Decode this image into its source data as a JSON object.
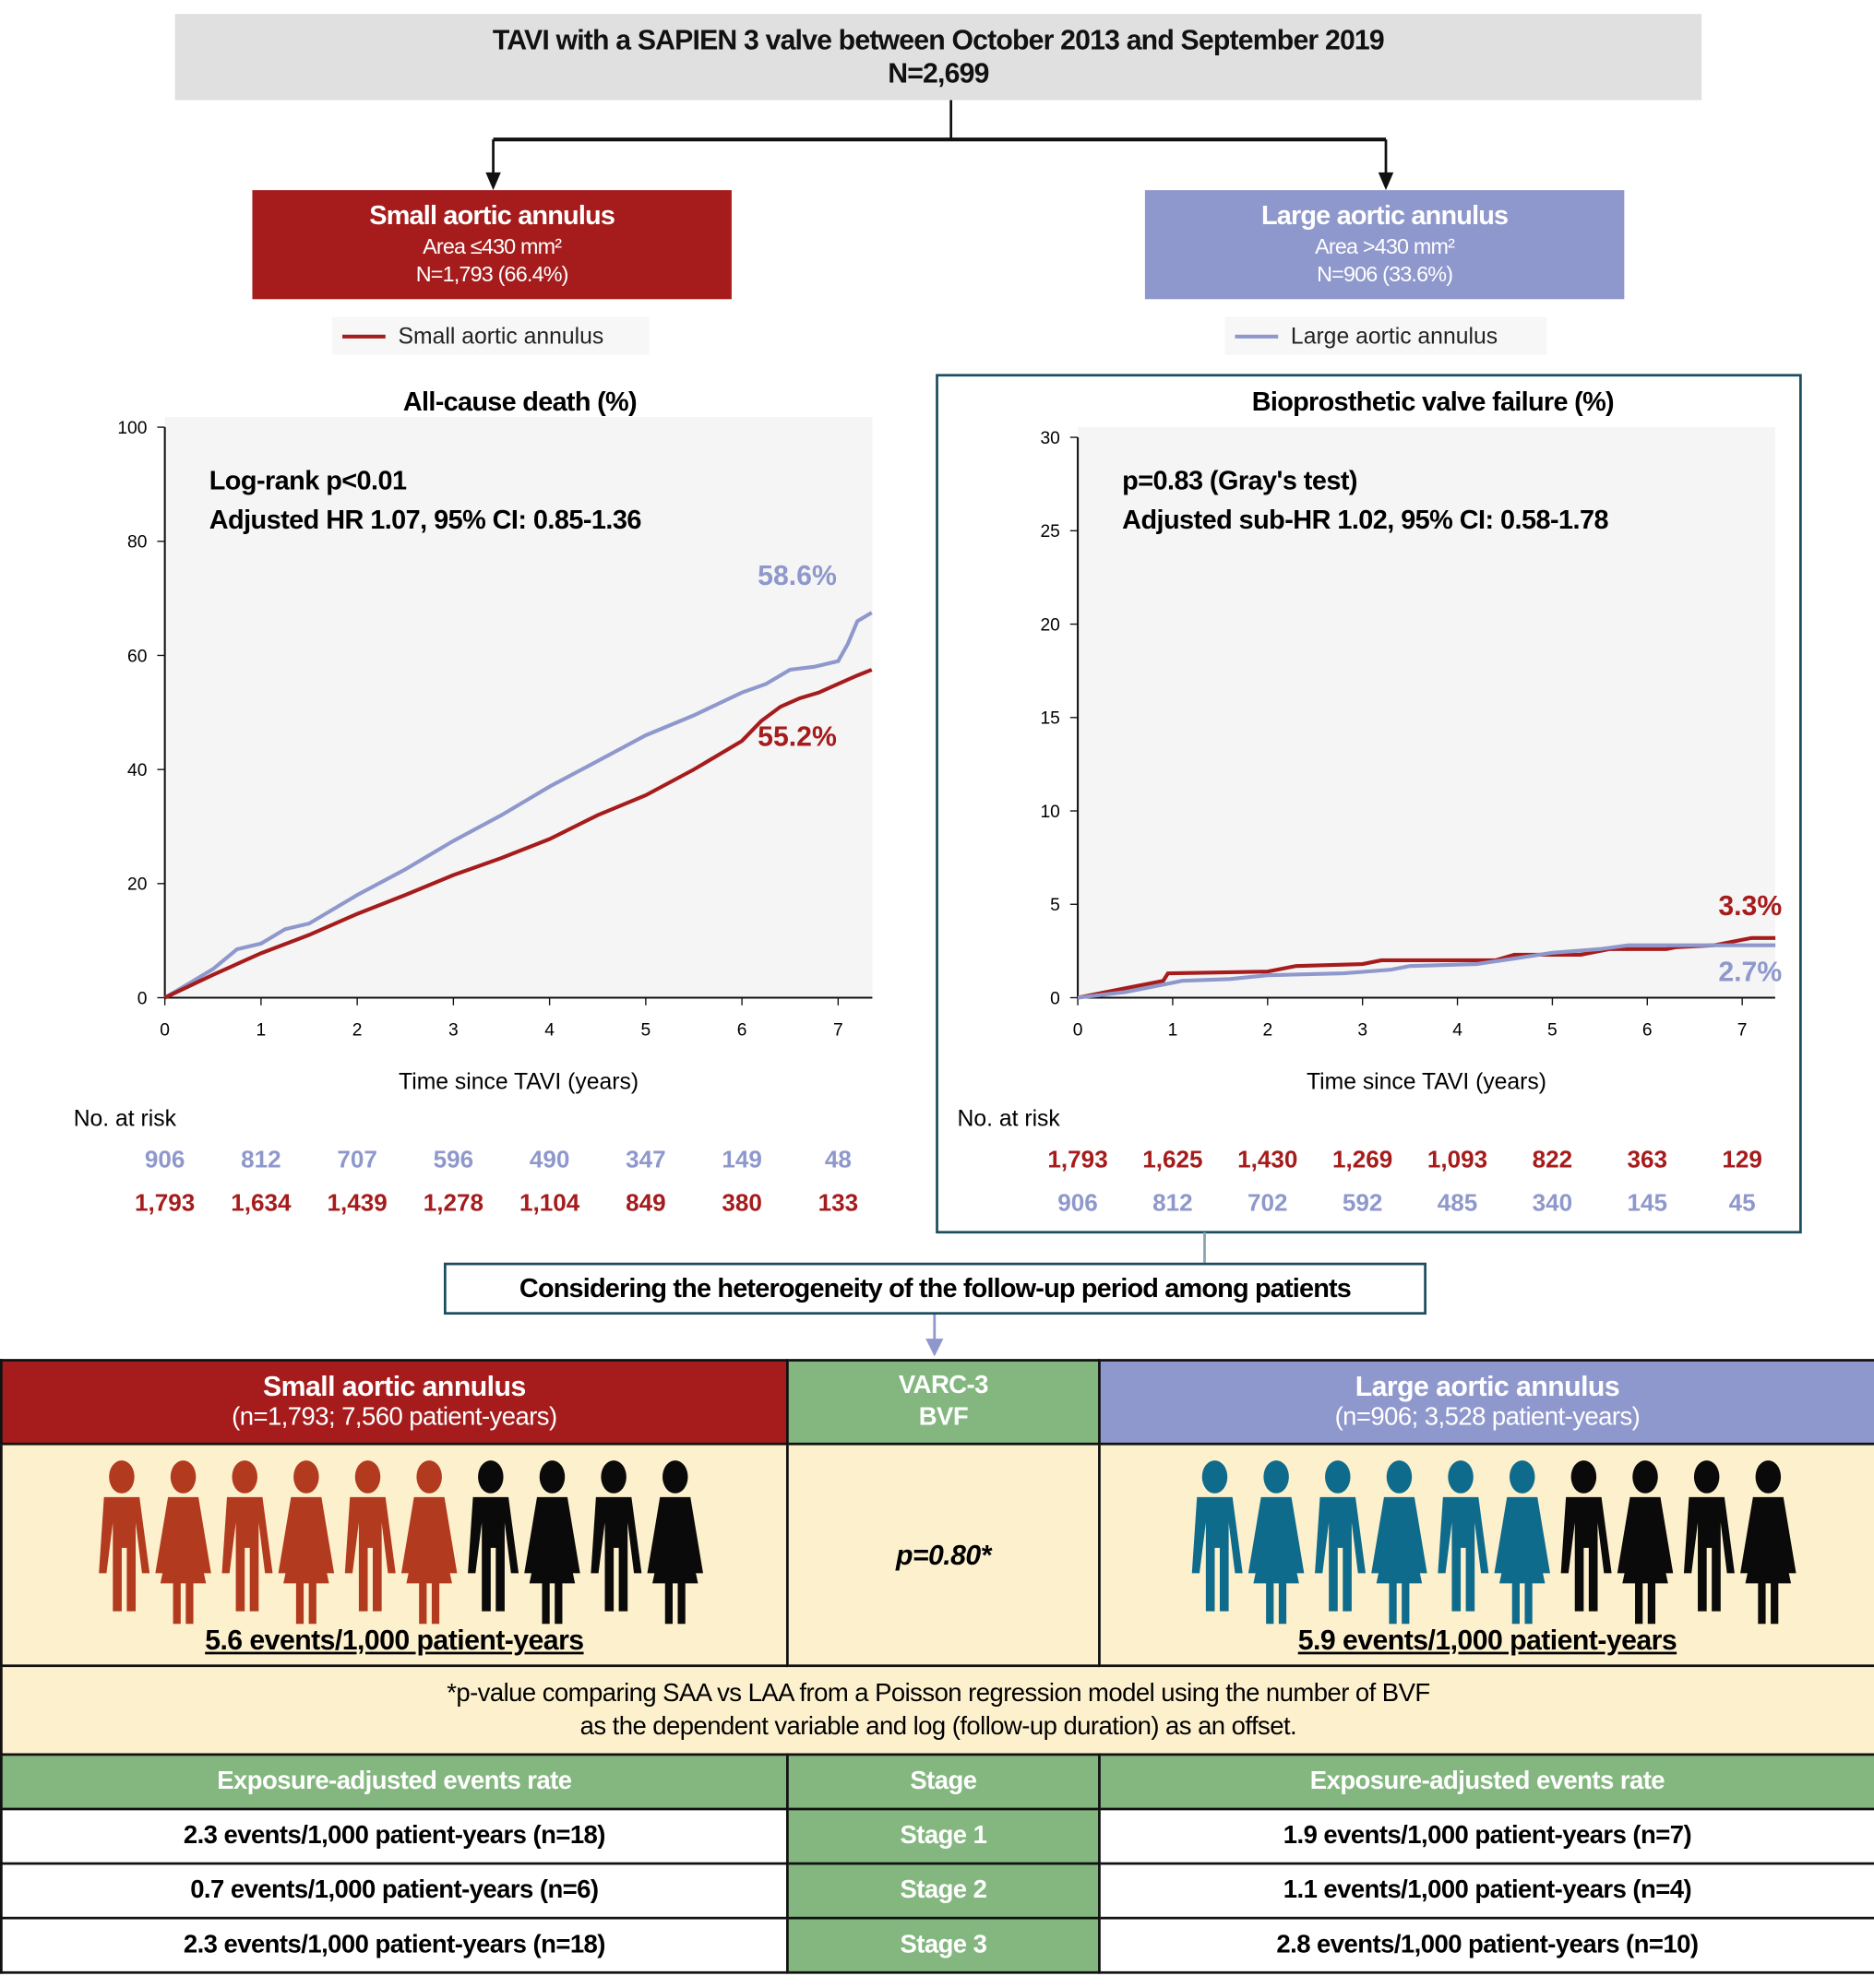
{
  "top": {
    "title": "TAVI with a SAPIEN 3 valve between October 2013 and September 2019",
    "n": "N=2,699"
  },
  "groups": {
    "small": {
      "title": "Small aortic annulus",
      "area": "Area ≤430 mm²",
      "n": "N=1,793 (66.4%)",
      "legend": "Small aortic annulus",
      "color": "#a61c1c"
    },
    "large": {
      "title": "Large aortic annulus",
      "area": "Area >430 mm²",
      "n": "N=906 (33.6%)",
      "legend": "Large aortic annulus",
      "color": "#8f98cc"
    }
  },
  "chart_data": [
    {
      "type": "line",
      "title": "All-cause death (%)",
      "xlabel": "Time since TAVI (years)",
      "ylabel": "",
      "xlim": [
        0,
        7.35
      ],
      "ylim": [
        0,
        100
      ],
      "xticks": [
        0,
        1,
        2,
        3,
        4,
        5,
        6,
        7
      ],
      "yticks": [
        0,
        20,
        40,
        60,
        80,
        100
      ],
      "annotation1": "Log-rank p<0.01",
      "annotation2": "Adjusted HR 1.07, 95% CI: 0.85-1.36",
      "series": [
        {
          "name": "Large aortic annulus",
          "color": "#8f98cc",
          "label": "58.6%",
          "x": [
            0,
            0.25,
            0.5,
            0.75,
            1,
            1.25,
            1.5,
            2,
            2.5,
            3,
            3.5,
            4,
            4.5,
            5,
            5.5,
            6,
            6.25,
            6.5,
            6.75,
            7,
            7.1,
            7.2,
            7.35
          ],
          "y": [
            0,
            2.5,
            5,
            8.5,
            9.5,
            12,
            13,
            18,
            22.5,
            27.5,
            32,
            37,
            41.5,
            46,
            49.5,
            53.5,
            55,
            57.5,
            58,
            59,
            62,
            66,
            67.5
          ]
        },
        {
          "name": "Small aortic annulus",
          "color": "#a61c1c",
          "label": "55.2%",
          "x": [
            0,
            0.5,
            1,
            1.5,
            2,
            2.5,
            3,
            3.5,
            4,
            4.5,
            5,
            5.5,
            6,
            6.2,
            6.4,
            6.6,
            6.8,
            7,
            7.2,
            7.35
          ],
          "y": [
            0,
            4,
            7.8,
            11,
            14.7,
            18,
            21.5,
            24.5,
            27.8,
            32,
            35.5,
            40,
            45,
            48.5,
            51,
            52.5,
            53.5,
            55,
            56.5,
            57.5
          ]
        }
      ],
      "at_risk_label": "No. at risk",
      "at_risk": [
        {
          "name": "Large aortic annulus",
          "values": [
            "906",
            "812",
            "707",
            "596",
            "490",
            "347",
            "149",
            "48"
          ]
        },
        {
          "name": "Small aortic annulus",
          "values": [
            "1,793",
            "1,634",
            "1,439",
            "1,278",
            "1,104",
            "849",
            "380",
            "133"
          ]
        }
      ]
    },
    {
      "type": "line",
      "title": "Bioprosthetic valve failure (%)",
      "xlabel": "Time since TAVI (years)",
      "ylabel": "",
      "xlim": [
        0,
        7.35
      ],
      "ylim": [
        0,
        30
      ],
      "xticks": [
        0,
        1,
        2,
        3,
        4,
        5,
        6,
        7
      ],
      "yticks": [
        0,
        5,
        10,
        15,
        20,
        25,
        30
      ],
      "annotation1": "p=0.83 (Gray's test)",
      "annotation2": "Adjusted sub-HR 1.02, 95% CI: 0.58-1.78",
      "series": [
        {
          "name": "Small aortic annulus",
          "color": "#a61c1c",
          "label": "3.3%",
          "x": [
            0,
            0.5,
            0.9,
            0.95,
            2,
            2.3,
            3,
            3.2,
            4.4,
            4.6,
            5.3,
            5.6,
            6.2,
            6.3,
            6.7,
            6.9,
            7.1,
            7.35
          ],
          "y": [
            0,
            0.5,
            0.9,
            1.3,
            1.4,
            1.7,
            1.8,
            2.0,
            2.0,
            2.3,
            2.3,
            2.6,
            2.6,
            2.7,
            2.8,
            3.0,
            3.2,
            3.2
          ]
        },
        {
          "name": "Large aortic annulus",
          "color": "#8f98cc",
          "label": "2.7%",
          "x": [
            0,
            0.5,
            0.8,
            1.1,
            1.6,
            2,
            2.8,
            3.3,
            3.5,
            4.2,
            4.6,
            5,
            5.5,
            5.8,
            7.35
          ],
          "y": [
            0,
            0.3,
            0.6,
            0.9,
            1.0,
            1.2,
            1.3,
            1.5,
            1.7,
            1.8,
            2.1,
            2.4,
            2.6,
            2.8,
            2.8
          ]
        }
      ],
      "at_risk_label": "No. at risk",
      "at_risk": [
        {
          "name": "Small aortic annulus",
          "values": [
            "1,793",
            "1,625",
            "1,430",
            "1,269",
            "1,093",
            "822",
            "363",
            "129"
          ]
        },
        {
          "name": "Large aortic annulus",
          "values": [
            "906",
            "812",
            "702",
            "592",
            "485",
            "340",
            "145",
            "45"
          ]
        }
      ]
    }
  ],
  "heterogeneity": "Considering the heterogeneity of the follow-up period among patients",
  "table": {
    "small_header": "Small aortic annulus",
    "small_sub": "(n=1,793; 7,560 patient-years)",
    "mid_header1": "VARC-3",
    "mid_header2": "BVF",
    "large_header": "Large aortic annulus",
    "large_sub": "(n=906; 3,528 patient-years)",
    "small_rate": "5.6 events/1,000 patient-years",
    "p_value": "p=0.80*",
    "large_rate": "5.9 events/1,000 patient-years",
    "small_people": {
      "total": 10,
      "highlighted": 6
    },
    "large_people": {
      "total": 10,
      "highlighted": 6
    },
    "footnote1": "*p-value comparing SAA vs LAA from a Poisson regression model using the number of BVF",
    "footnote2": "as the dependent variable and log (follow-up duration) as an offset.",
    "col_left": "Exposure-adjusted events rate",
    "col_mid": "Stage",
    "col_right": "Exposure-adjusted events rate",
    "rows": [
      {
        "left": "2.3 events/1,000 patient-years (n=18)",
        "stage": "Stage 1",
        "right": "1.9 events/1,000 patient-years (n=7)"
      },
      {
        "left": "0.7 events/1,000 patient-years (n=6)",
        "stage": "Stage 2",
        "right": "1.1 events/1,000 patient-years (n=4)"
      },
      {
        "left": "2.3 events/1,000 patient-years (n=18)",
        "stage": "Stage 3",
        "right": "2.8 events/1,000 patient-years (n=10)"
      }
    ]
  }
}
